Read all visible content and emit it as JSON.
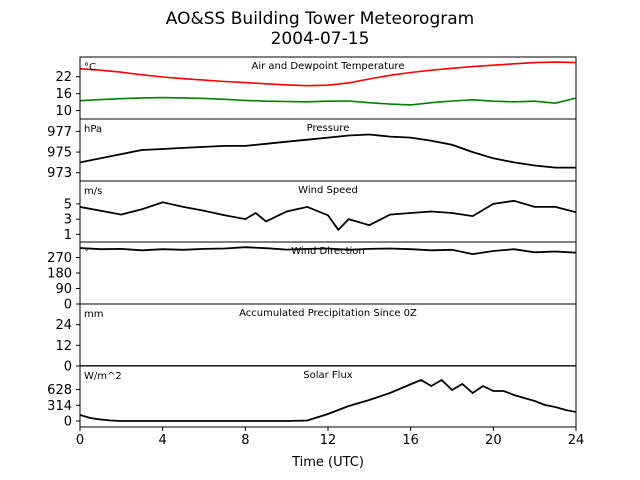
{
  "title_line1": "AO&SS Building Tower Meteorogram",
  "title_line2": "2004-07-15",
  "chart_data": {
    "type": "line",
    "xlabel": "Time (UTC)",
    "xlim": [
      0,
      24
    ],
    "x_ticks": [
      0,
      4,
      8,
      12,
      16,
      20,
      24
    ],
    "panels": [
      {
        "title": "Air and Dewpoint Temperature",
        "units": "°C",
        "ylim": [
          7,
          29
        ],
        "y_ticks": [
          10,
          16,
          22
        ],
        "series": [
          {
            "color": "#ff0000",
            "x": [
              0,
              1,
              2,
              3,
              4,
              5,
              6,
              7,
              8,
              9,
              10,
              11,
              12,
              13,
              14,
              15,
              16,
              17,
              18,
              19,
              20,
              21,
              22,
              23,
              24
            ],
            "y": [
              24.8,
              24.3,
              23.6,
              22.7,
              21.9,
              21.3,
              20.8,
              20.3,
              19.9,
              19.5,
              19.1,
              18.8,
              19.0,
              19.8,
              21.2,
              22.5,
              23.5,
              24.3,
              25.0,
              25.6,
              26.1,
              26.6,
              27.0,
              27.2,
              27.0
            ]
          },
          {
            "color": "#008000",
            "x": [
              0,
              1,
              2,
              3,
              4,
              5,
              6,
              7,
              8,
              9,
              10,
              11,
              12,
              13,
              14,
              15,
              16,
              17,
              18,
              19,
              20,
              21,
              22,
              23,
              24
            ],
            "y": [
              13.5,
              13.9,
              14.2,
              14.5,
              14.6,
              14.5,
              14.3,
              14.0,
              13.6,
              13.3,
              13.2,
              13.1,
              13.3,
              13.4,
              12.8,
              12.3,
              12.0,
              12.8,
              13.4,
              13.8,
              13.3,
              13.1,
              13.3,
              12.6,
              14.4
            ]
          }
        ]
      },
      {
        "title": "Pressure",
        "units": "hPa",
        "ylim": [
          972.2,
          978.2
        ],
        "y_ticks": [
          973,
          975,
          977
        ],
        "series": [
          {
            "color": "#000000",
            "x": [
              0,
              1,
              2,
              3,
              4,
              5,
              6,
              7,
              8,
              9,
              10,
              11,
              12,
              13,
              14,
              15,
              16,
              17,
              18,
              19,
              20,
              21,
              22,
              23,
              24
            ],
            "y": [
              974.0,
              974.4,
              974.8,
              975.2,
              975.3,
              975.4,
              975.5,
              975.6,
              975.6,
              975.8,
              976.0,
              976.2,
              976.4,
              976.6,
              976.7,
              976.5,
              976.4,
              976.1,
              975.7,
              975.0,
              974.4,
              974.0,
              973.7,
              973.5,
              973.5
            ]
          }
        ]
      },
      {
        "title": "Wind Speed",
        "units": "m/s",
        "ylim": [
          0,
          8
        ],
        "y_ticks": [
          1,
          3,
          5
        ],
        "series": [
          {
            "color": "#000000",
            "x": [
              0,
              1,
              2,
              3,
              4,
              5,
              6,
              7,
              8,
              8.5,
              9,
              10,
              11,
              12,
              12.5,
              13,
              14,
              15,
              16,
              17,
              18,
              19,
              20,
              21,
              22,
              23,
              24
            ],
            "y": [
              4.6,
              4.1,
              3.6,
              4.3,
              5.2,
              4.6,
              4.1,
              3.5,
              3.0,
              3.8,
              2.7,
              4.0,
              4.6,
              3.5,
              1.6,
              3.0,
              2.2,
              3.6,
              3.8,
              4.0,
              3.8,
              3.4,
              5.0,
              5.4,
              4.6,
              4.6,
              3.9
            ]
          }
        ]
      },
      {
        "title": "Wind Direction",
        "units": "°",
        "ylim": [
          0,
          360
        ],
        "y_ticks": [
          0,
          90,
          180,
          270
        ],
        "series": [
          {
            "color": "#000000",
            "x": [
              0,
              1,
              2,
              3,
              4,
              5,
              6,
              7,
              8,
              9,
              10,
              11,
              12,
              13,
              14,
              15,
              16,
              17,
              18,
              19,
              20,
              21,
              22,
              23,
              24
            ],
            "y": [
              325,
              318,
              320,
              312,
              318,
              315,
              320,
              322,
              330,
              324,
              316,
              320,
              322,
              315,
              320,
              322,
              318,
              312,
              315,
              290,
              308,
              318,
              300,
              305,
              298
            ]
          }
        ]
      },
      {
        "title": "Accumulated Precipitation Since 0Z",
        "units": "mm",
        "ylim": [
          0,
          36
        ],
        "y_ticks": [
          0,
          12,
          24
        ],
        "series": [
          {
            "color": "#000000",
            "x": [
              0,
              24
            ],
            "y": [
              0,
              0
            ]
          }
        ]
      },
      {
        "title": "Solar Flux",
        "units": "W/m^2",
        "ylim": [
          -120,
          1100
        ],
        "y_ticks": [
          0,
          314,
          628
        ],
        "series": [
          {
            "color": "#000000",
            "x": [
              0,
              0.5,
              1,
              1.5,
              2,
              3,
              4,
              6,
              8,
              10,
              11,
              12,
              13,
              14,
              15,
              15.8,
              16.5,
              17,
              17.5,
              18,
              18.5,
              19,
              19.5,
              20,
              20.5,
              21,
              21.5,
              22,
              22.5,
              23,
              23.5,
              24
            ],
            "y": [
              120,
              60,
              30,
              10,
              0,
              0,
              0,
              0,
              0,
              0,
              10,
              140,
              300,
              420,
              560,
              700,
              820,
              700,
              820,
              620,
              740,
              560,
              700,
              600,
              600,
              520,
              460,
              400,
              320,
              280,
              220,
              180
            ]
          }
        ]
      }
    ]
  }
}
